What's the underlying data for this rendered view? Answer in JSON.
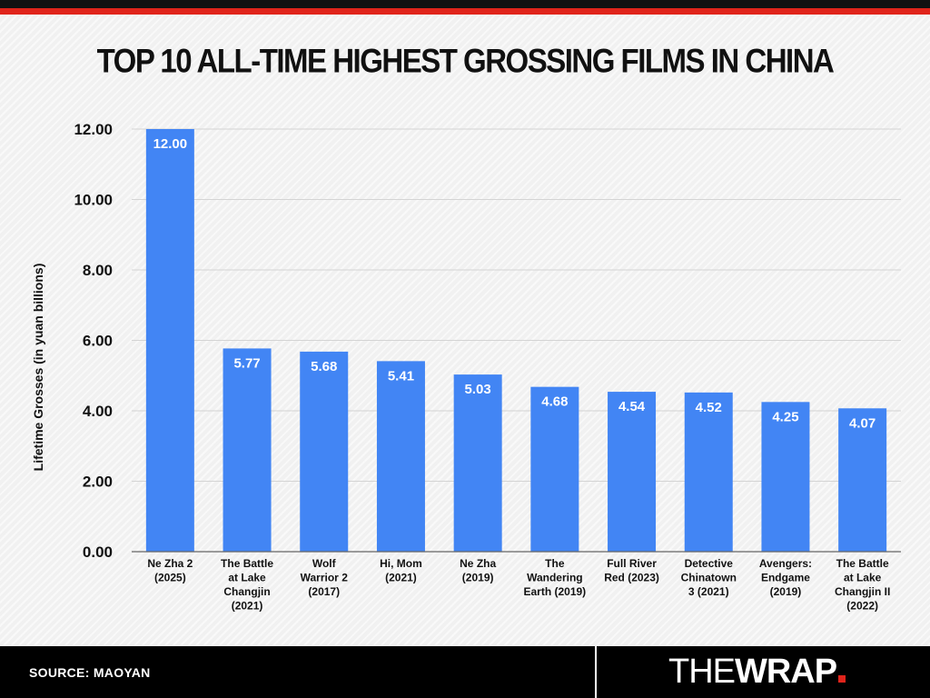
{
  "header": {
    "title": "TOP 10 ALL-TIME HIGHEST GROSSING FILMS IN CHINA"
  },
  "footer": {
    "source": "SOURCE: MAOYAN",
    "brand_the": "THE",
    "brand_wrap": "WRAP"
  },
  "colors": {
    "bar": "#4285f4",
    "accent_red": "#e0241b",
    "footer_bg": "#000000"
  },
  "chart_data": {
    "type": "bar",
    "title": "TOP 10 ALL-TIME HIGHEST GROSSING FILMS IN CHINA",
    "xlabel": "",
    "ylabel": "Lifetime Grosses (in yuan billions)",
    "ylim": [
      0,
      12
    ],
    "yticks": [
      "0.00",
      "2.00",
      "4.00",
      "6.00",
      "8.00",
      "10.00",
      "12.00"
    ],
    "grid": true,
    "categories": [
      [
        "Ne Zha 2",
        "(2025)"
      ],
      [
        "The Battle",
        "at Lake",
        "Changjin",
        "(2021)"
      ],
      [
        "Wolf",
        "Warrior 2",
        "(2017)"
      ],
      [
        "Hi, Mom",
        "(2021)"
      ],
      [
        "Ne Zha",
        "(2019)"
      ],
      [
        "The",
        "Wandering",
        "Earth (2019)"
      ],
      [
        "Full River",
        "Red (2023)"
      ],
      [
        "Detective",
        "Chinatown",
        "3 (2021)"
      ],
      [
        "Avengers:",
        "Endgame",
        "(2019)"
      ],
      [
        "The Battle",
        "at Lake",
        "Changjin II",
        "(2022)"
      ]
    ],
    "values": [
      12.0,
      5.77,
      5.68,
      5.41,
      5.03,
      4.68,
      4.54,
      4.52,
      4.25,
      4.07
    ],
    "data_labels": [
      "12.00",
      "5.77",
      "5.68",
      "5.41",
      "5.03",
      "4.68",
      "4.54",
      "4.52",
      "4.25",
      "4.07"
    ]
  }
}
